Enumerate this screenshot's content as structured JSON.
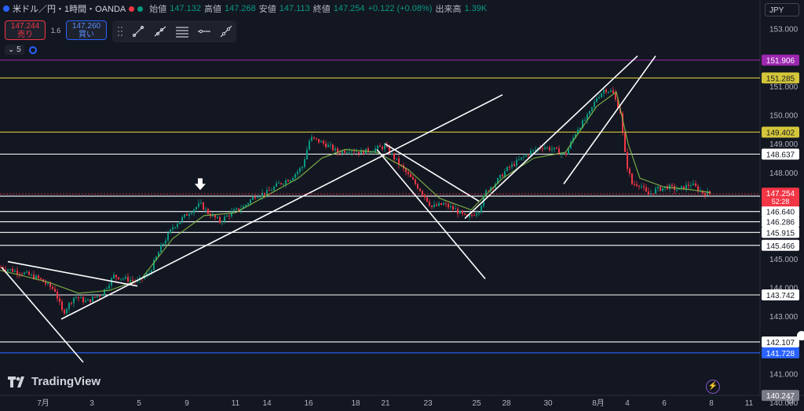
{
  "legend": {
    "symbol": "米ドル／円・1時間・OANDA",
    "open_label": "始値",
    "open_value": "147.132",
    "high_label": "高値",
    "high_value": "147.268",
    "low_label": "安値",
    "low_value": "147.113",
    "close_label": "終値",
    "close_value": "147.254",
    "change": "+0.122 (+0.08%)",
    "volume_label": "出来高",
    "volume_value": "1.39K",
    "status_color": "#f23645"
  },
  "trade": {
    "sell_price": "147.244",
    "sell_label": "売り",
    "spread": "1.6",
    "buy_price": "147.260",
    "buy_label": "買い"
  },
  "interval": {
    "label": "5"
  },
  "currency": {
    "label": "JPY"
  },
  "brand": {
    "name": "TradingView"
  },
  "settings": {
    "icon": "gear-icon"
  },
  "drawing_tools": [
    "trend-line-icon",
    "ray-icon",
    "parallel-channel-icon",
    "horizontal-line-icon",
    "extended-line-icon"
  ],
  "price_axis": {
    "ticks": [
      "153.000",
      "152.000",
      "151.000",
      "150.000",
      "149.000",
      "148.000",
      "147.000",
      "146.000",
      "145.000",
      "144.000",
      "143.000",
      "142.000",
      "141.000",
      "140.000"
    ],
    "current_price": "147.254",
    "countdown": "52:28"
  },
  "time_axis": {
    "ticks": [
      "7月",
      "3",
      "5",
      "9",
      "11",
      "14",
      "16",
      "18",
      "21",
      "23",
      "25",
      "28",
      "30",
      "8月",
      "4",
      "6",
      "8",
      "11"
    ]
  },
  "chart_data": {
    "type": "candlestick",
    "symbol": "USD/JPY",
    "timeframe": "1h",
    "ylim": [
      140.2,
      153.2
    ],
    "grid": false,
    "horizontal_levels": [
      {
        "value": 151.906,
        "label": "151.906",
        "color": "#9c27b0"
      },
      {
        "value": 151.285,
        "label": "151.285",
        "color": "#d4c63a"
      },
      {
        "value": 149.402,
        "label": "149.402",
        "color": "#d4c63a"
      },
      {
        "value": 148.637,
        "label": "148.637",
        "color": "#ffffff"
      },
      {
        "value": 147.175,
        "label": "147.175",
        "color": "#ffffff"
      },
      {
        "value": 146.64,
        "label": "146.640",
        "color": "#ffffff"
      },
      {
        "value": 146.286,
        "label": "146.286",
        "color": "#ffffff"
      },
      {
        "value": 145.915,
        "label": "145.915",
        "color": "#ffffff"
      },
      {
        "value": 145.466,
        "label": "145.466",
        "color": "#ffffff"
      },
      {
        "value": 143.742,
        "label": "143.742",
        "color": "#ffffff"
      },
      {
        "value": 142.107,
        "label": "142.107",
        "color": "#ffffff"
      },
      {
        "value": 141.728,
        "label": "141.728",
        "color": "#2962ff"
      },
      {
        "value": 140.247,
        "label": "140.247",
        "color": "#787b86"
      }
    ],
    "price_path": [
      [
        0,
        144.7
      ],
      [
        30,
        144.5
      ],
      [
        50,
        144.3
      ],
      [
        70,
        143.9
      ],
      [
        80,
        143.1
      ],
      [
        95,
        143.7
      ],
      [
        110,
        143.5
      ],
      [
        130,
        143.8
      ],
      [
        145,
        144.4
      ],
      [
        160,
        144.3
      ],
      [
        175,
        144.2
      ],
      [
        190,
        144.5
      ],
      [
        205,
        145.4
      ],
      [
        220,
        146.1
      ],
      [
        240,
        146.6
      ],
      [
        255,
        146.9
      ],
      [
        265,
        146.6
      ],
      [
        280,
        146.3
      ],
      [
        295,
        146.6
      ],
      [
        310,
        146.8
      ],
      [
        325,
        147.2
      ],
      [
        340,
        147.3
      ],
      [
        355,
        147.6
      ],
      [
        370,
        147.8
      ],
      [
        385,
        148.2
      ],
      [
        395,
        149.2
      ],
      [
        405,
        149.1
      ],
      [
        420,
        148.9
      ],
      [
        430,
        148.7
      ],
      [
        445,
        148.8
      ],
      [
        460,
        148.7
      ],
      [
        475,
        148.8
      ],
      [
        490,
        148.9
      ],
      [
        505,
        148.4
      ],
      [
        520,
        147.9
      ],
      [
        535,
        147.4
      ],
      [
        550,
        146.8
      ],
      [
        565,
        146.9
      ],
      [
        580,
        146.7
      ],
      [
        595,
        146.4
      ],
      [
        610,
        146.7
      ],
      [
        620,
        147.4
      ],
      [
        630,
        147.6
      ],
      [
        645,
        148.1
      ],
      [
        660,
        148.4
      ],
      [
        675,
        148.7
      ],
      [
        690,
        148.9
      ],
      [
        705,
        148.8
      ],
      [
        720,
        148.6
      ],
      [
        735,
        149.5
      ],
      [
        750,
        150.0
      ],
      [
        760,
        150.6
      ],
      [
        770,
        150.9
      ],
      [
        780,
        150.8
      ],
      [
        790,
        150.1
      ],
      [
        797,
        148.4
      ],
      [
        805,
        147.6
      ],
      [
        815,
        147.6
      ],
      [
        825,
        147.2
      ],
      [
        835,
        147.4
      ],
      [
        850,
        147.5
      ],
      [
        865,
        147.4
      ],
      [
        880,
        147.6
      ],
      [
        895,
        147.3
      ],
      [
        905,
        147.254
      ]
    ],
    "ma_path": [
      [
        0,
        144.6
      ],
      [
        60,
        144.2
      ],
      [
        100,
        143.8
      ],
      [
        140,
        143.9
      ],
      [
        180,
        144.3
      ],
      [
        220,
        145.7
      ],
      [
        260,
        146.5
      ],
      [
        300,
        146.6
      ],
      [
        340,
        147.2
      ],
      [
        380,
        147.8
      ],
      [
        410,
        148.5
      ],
      [
        440,
        148.8
      ],
      [
        480,
        148.7
      ],
      [
        520,
        148.1
      ],
      [
        560,
        147.1
      ],
      [
        600,
        146.7
      ],
      [
        640,
        147.8
      ],
      [
        680,
        148.5
      ],
      [
        720,
        148.7
      ],
      [
        760,
        150.3
      ],
      [
        785,
        150.8
      ],
      [
        800,
        149.0
      ],
      [
        815,
        147.8
      ],
      [
        845,
        147.5
      ],
      [
        880,
        147.4
      ],
      [
        905,
        147.3
      ]
    ],
    "trend_lines": [
      {
        "from": [
          10,
          144.9
        ],
        "to": [
          175,
          144.05
        ]
      },
      {
        "from": [
          2,
          144.7
        ],
        "to": [
          106,
          141.4
        ]
      },
      {
        "from": [
          78,
          142.9
        ],
        "to": [
          640,
          150.7
        ]
      },
      {
        "from": [
          480,
          148.8
        ],
        "to": [
          618,
          144.3
        ]
      },
      {
        "from": [
          490,
          149.0
        ],
        "to": [
          610,
          147.0
        ]
      },
      {
        "from": [
          592,
          146.4
        ],
        "to": [
          812,
          152.05
        ]
      },
      {
        "from": [
          718,
          147.6
        ],
        "to": [
          835,
          152.05
        ]
      }
    ],
    "markers": [
      {
        "x": 255,
        "value": 147.25,
        "type": "down-arrow",
        "color": "#ffffff"
      }
    ]
  }
}
